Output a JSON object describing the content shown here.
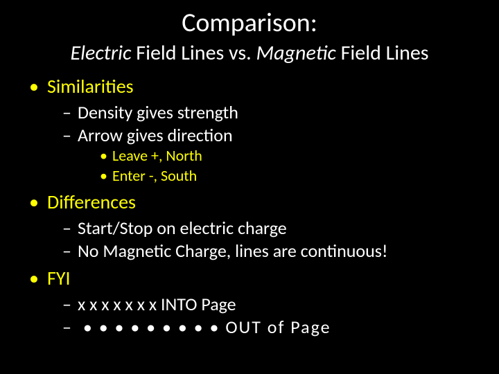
{
  "colors": {
    "background": "#000000",
    "text_primary": "#ffffff",
    "text_accent": "#ffff00"
  },
  "typography": {
    "title_fontsize": 38,
    "subtitle_fontsize": 30,
    "l1_fontsize": 28,
    "l2_fontsize": 26,
    "l3_fontsize": 22,
    "font_family": "Calibri"
  },
  "title": "Comparison:",
  "subtitle": {
    "italic1": "Electric",
    "plain1": " Field Lines vs. ",
    "italic2": "Magnetic",
    "plain2": " Field Lines"
  },
  "sections": [
    {
      "label": "Similarities",
      "l2": [
        "Density gives strength",
        "Arrow gives direction"
      ],
      "l3": [
        "Leave +, North",
        "Enter  -, South"
      ]
    },
    {
      "label": "Differences",
      "l2": [
        "Start/Stop on electric charge",
        "No Magnetic Charge, lines are continuous!"
      ],
      "l3": []
    },
    {
      "label": "FYI",
      "l2": [
        "x x x x x x x   INTO Page",
        " • • • • • • • • •  OUT of Page"
      ],
      "l3": []
    }
  ]
}
